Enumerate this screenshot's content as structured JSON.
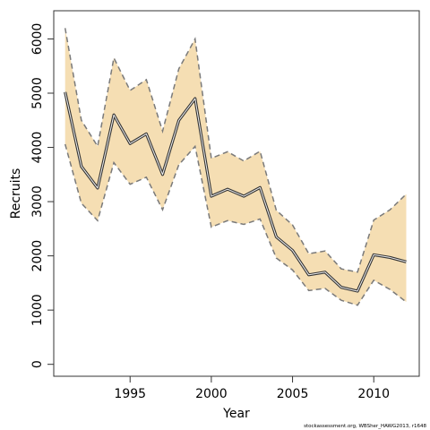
{
  "chart_data": {
    "type": "line",
    "xlabel": "Year",
    "ylabel": "Recruits",
    "xlim": [
      1990.3,
      2012.8
    ],
    "ylim": [
      -220,
      6520
    ],
    "x_ticks": [
      1995,
      2000,
      2005,
      2010
    ],
    "y_ticks": [
      0,
      1000,
      2000,
      3000,
      4000,
      5000,
      6000
    ],
    "grid": false,
    "legend": "none",
    "x": [
      1991,
      1992,
      1993,
      1994,
      1995,
      1996,
      1997,
      1998,
      1999,
      2000,
      2001,
      2002,
      2003,
      2004,
      2005,
      2006,
      2007,
      2008,
      2009,
      2010,
      2011,
      2012
    ],
    "series": [
      {
        "role": "estimate",
        "values": [
          5020,
          3650,
          3250,
          4600,
          4070,
          4250,
          3500,
          4500,
          4900,
          3100,
          3230,
          3100,
          3260,
          2350,
          2100,
          1650,
          1700,
          1420,
          1350,
          2020,
          1970,
          1890
        ]
      },
      {
        "role": "upper",
        "values": [
          6200,
          4500,
          4020,
          5650,
          5050,
          5250,
          4300,
          5450,
          6000,
          3800,
          3920,
          3750,
          3930,
          2840,
          2570,
          2040,
          2090,
          1760,
          1700,
          2660,
          2850,
          3140
        ]
      },
      {
        "role": "lower",
        "values": [
          4060,
          2970,
          2650,
          3720,
          3320,
          3450,
          2850,
          3680,
          4020,
          2530,
          2650,
          2580,
          2680,
          1960,
          1740,
          1360,
          1400,
          1180,
          1090,
          1550,
          1380,
          1150
        ]
      }
    ],
    "colors": {
      "band_fill": "#F5DEB3",
      "bound_line": "#7a7a7a",
      "estimate_outline": "#333333",
      "estimate_inner": "#f2f2f2",
      "frame": "#333333"
    }
  },
  "footnote": "stockassessment.org, WBSher_HAWG2013, r1648"
}
